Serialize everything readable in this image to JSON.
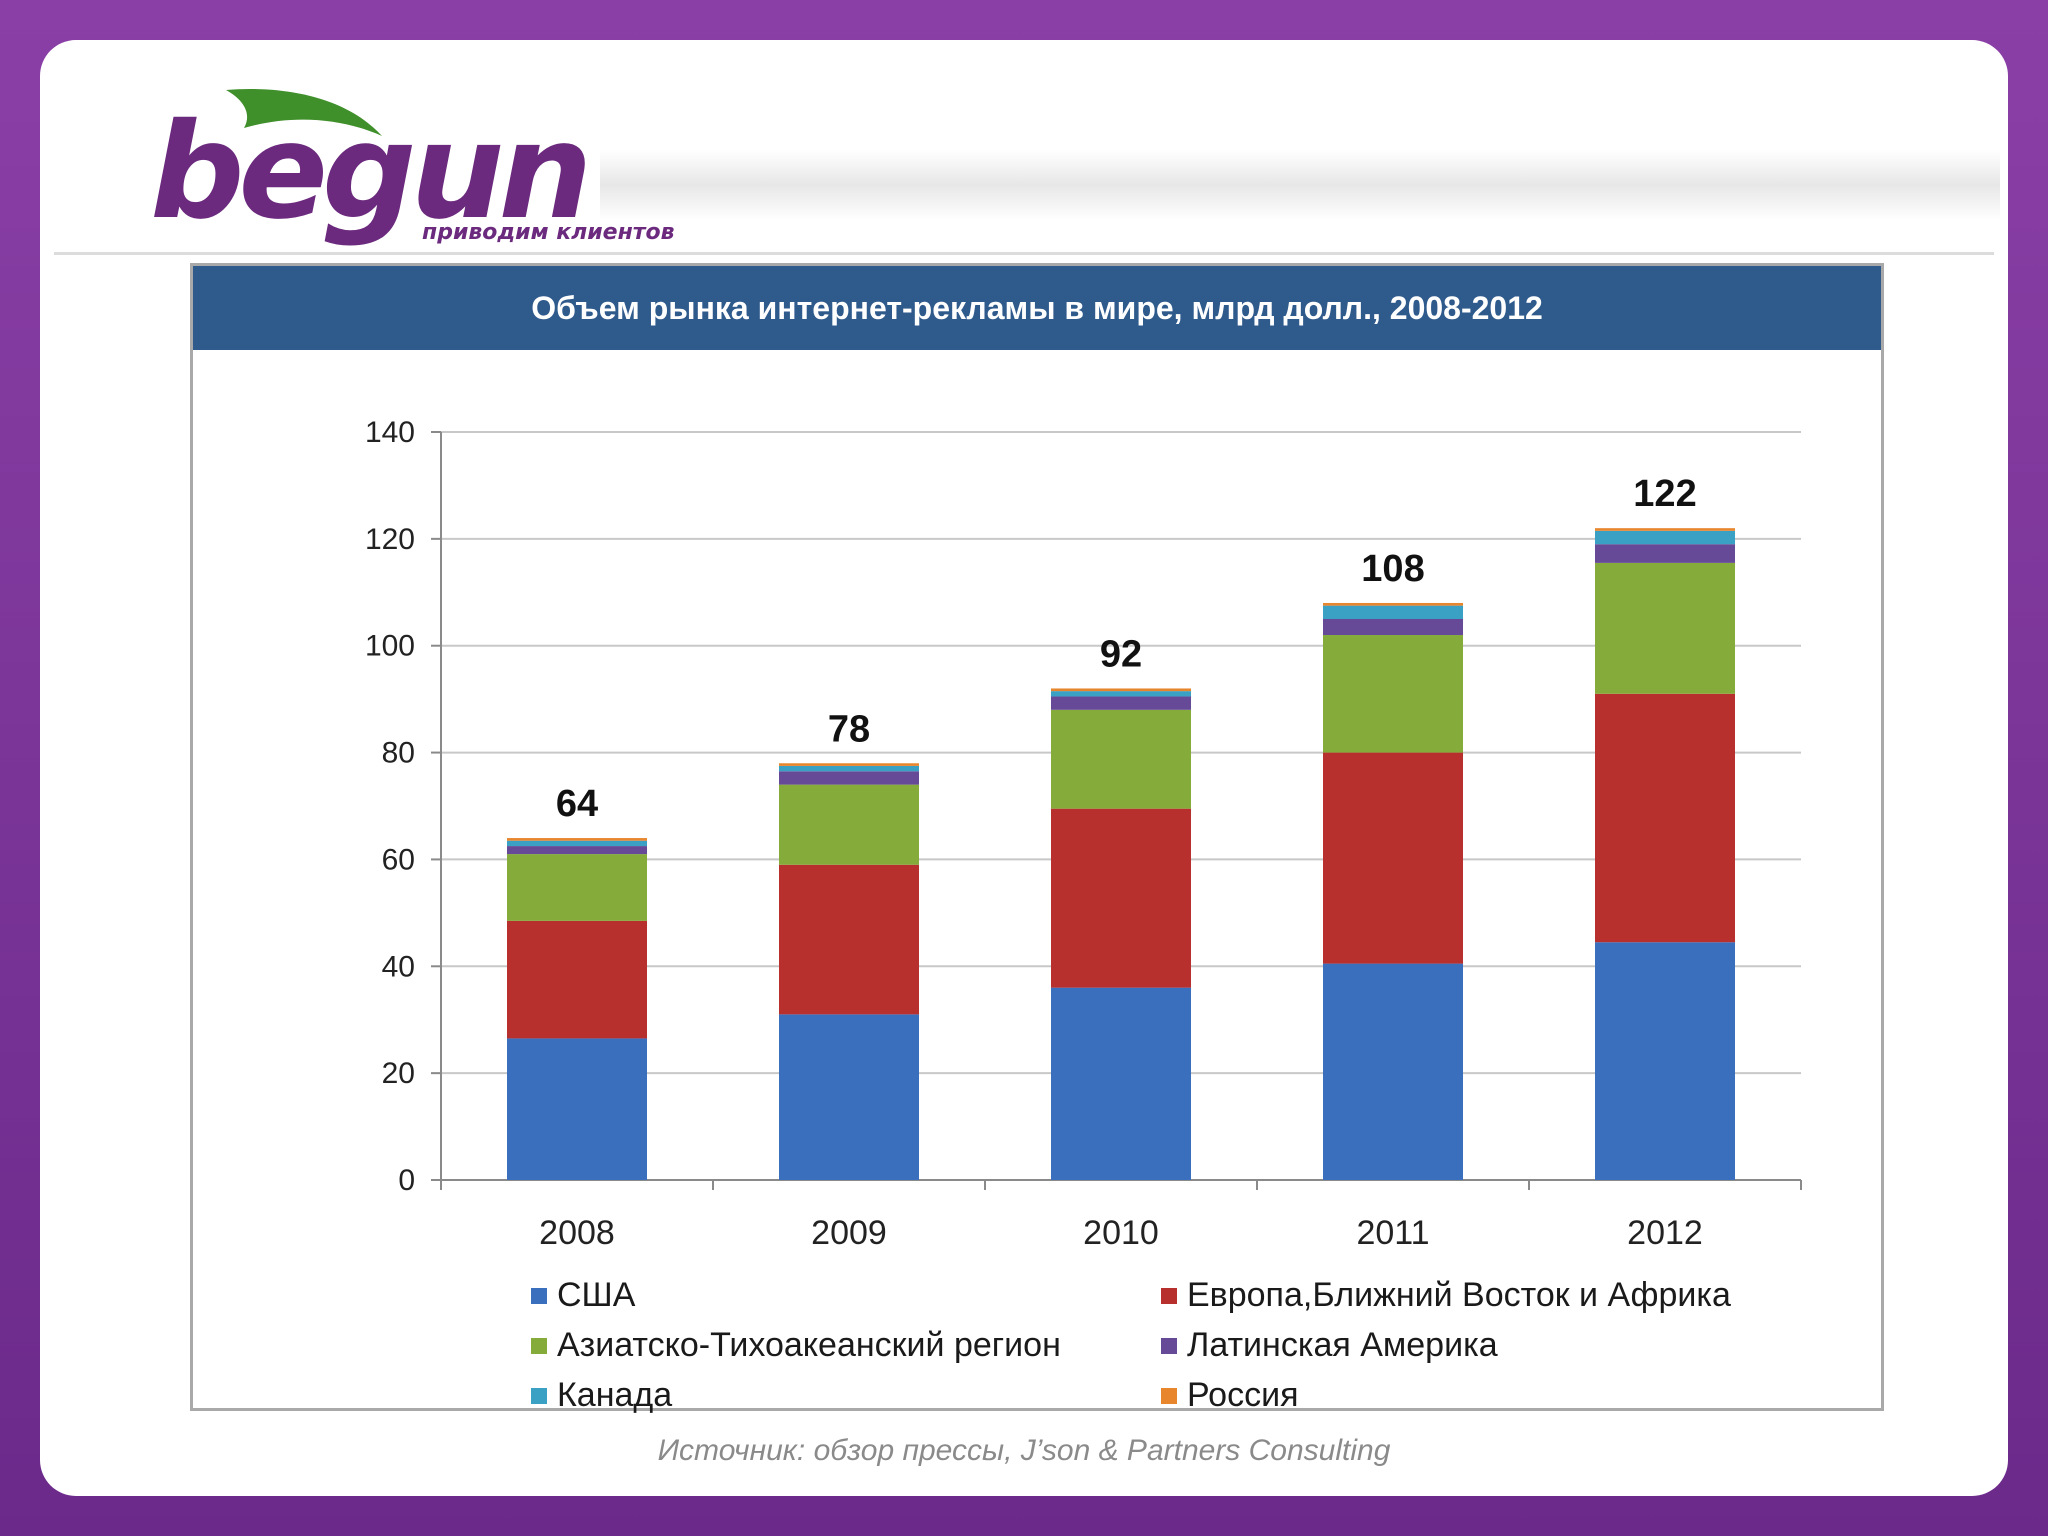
{
  "logo": {
    "wordmark": "begun",
    "tagline": "приводим клиентов"
  },
  "source_note": "Источник: обзор прессы, J’son & Partners Consulting",
  "colors": {
    "frame": "#7b3a98",
    "title_bar": "#2f5a8c",
    "logo": "#6b2a7e",
    "leaf": "#3f8f2a"
  },
  "chart_data": {
    "type": "bar",
    "stacked": true,
    "title": "Объем рынка интернет-рекламы в мире, млрд долл., 2008-2012",
    "xlabel": "",
    "ylabel": "",
    "ylim": [
      0,
      140
    ],
    "yticks": [
      0,
      20,
      40,
      60,
      80,
      100,
      120,
      140
    ],
    "grid": true,
    "legend_position": "bottom",
    "categories": [
      "2008",
      "2009",
      "2010",
      "2011",
      "2012"
    ],
    "totals": [
      64,
      78,
      92,
      108,
      122
    ],
    "series": [
      {
        "name": "США",
        "color": "#3a6fbe",
        "values": [
          26.5,
          31,
          36,
          40.5,
          44.5
        ]
      },
      {
        "name": "Европа,Ближний Восток и Африка",
        "color": "#b8302e",
        "values": [
          22,
          28,
          33.5,
          39.5,
          46.5
        ]
      },
      {
        "name": "Азиатско-Тихоакеанский регион",
        "color": "#85ab3a",
        "values": [
          12.5,
          15,
          18.5,
          22,
          24.5
        ]
      },
      {
        "name": "Латинская Америка",
        "color": "#664a97",
        "values": [
          1.5,
          2.5,
          2.5,
          3,
          3.5
        ]
      },
      {
        "name": "Канада",
        "color": "#3aa0c4",
        "values": [
          1,
          1,
          1,
          2.5,
          2.5
        ]
      },
      {
        "name": "Россия",
        "color": "#e8862e",
        "values": [
          0.5,
          0.5,
          0.5,
          0.5,
          0.5
        ]
      }
    ]
  }
}
